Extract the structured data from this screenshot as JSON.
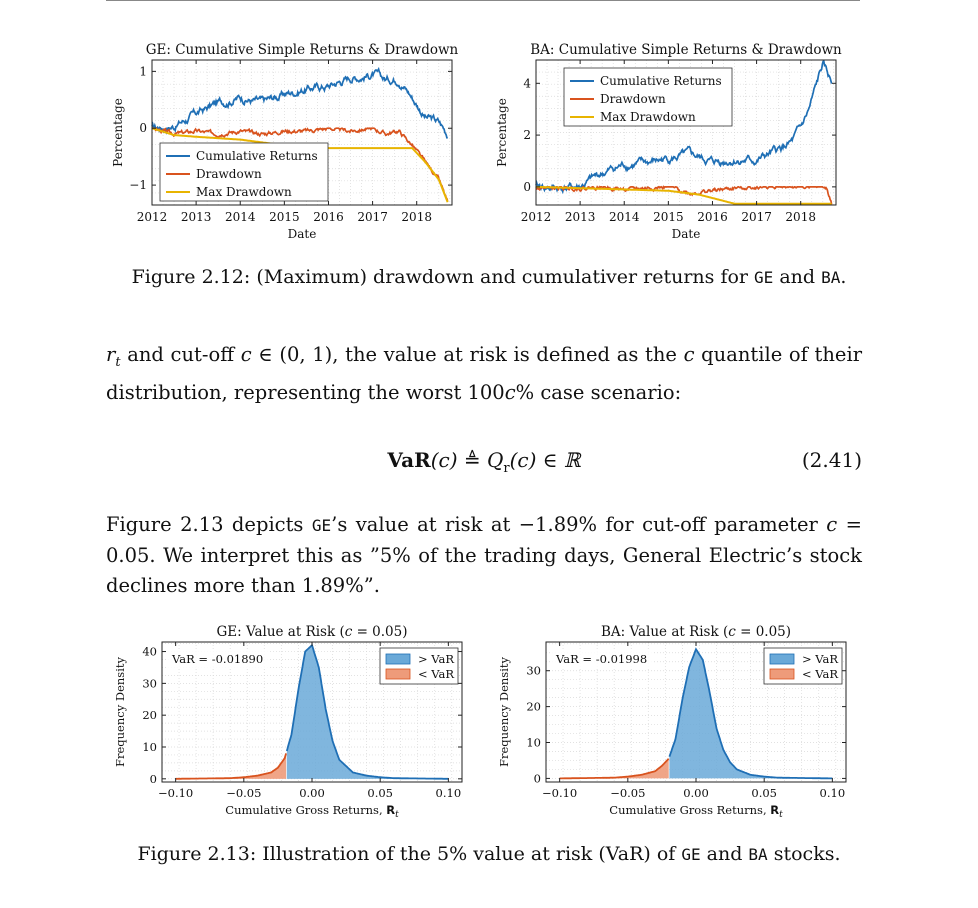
{
  "chart_data": [
    {
      "type": "line",
      "title": "GE: Cumulative Simple Returns & Drawdown",
      "xlabel": "Date",
      "ylabel": "Percentage",
      "xlim": [
        2012,
        2018.8
      ],
      "ylim": [
        -1.35,
        1.2
      ],
      "xticks": [
        "2012",
        "2013",
        "2014",
        "2015",
        "2016",
        "2017",
        "2018"
      ],
      "yticks": [
        {
          "v": 1,
          "label": "1"
        },
        {
          "v": 0,
          "label": "0"
        },
        {
          "v": -1,
          "label": "−1"
        }
      ],
      "legend": "bottom-left",
      "grid": true,
      "series": [
        {
          "name": "Cumulative Returns",
          "color": "#1f6fb5",
          "x": [
            2012,
            2012.5,
            2013,
            2013.5,
            2014,
            2014.5,
            2015,
            2015.5,
            2016,
            2016.5,
            2017,
            2017.3,
            2017.6,
            2017.9,
            2018.2,
            2018.5,
            2018.7
          ],
          "y": [
            0,
            0.05,
            0.25,
            0.45,
            0.55,
            0.45,
            0.6,
            0.7,
            0.75,
            0.9,
            0.95,
            0.85,
            0.9,
            0.55,
            0.2,
            0.1,
            -0.1
          ]
        },
        {
          "name": "Drawdown",
          "color": "#d9531e",
          "x": [
            2012,
            2012.5,
            2013,
            2013.5,
            2014,
            2014.5,
            2015,
            2015.5,
            2016,
            2016.5,
            2017,
            2017.3,
            2017.6,
            2017.9,
            2018.2,
            2018.5,
            2018.7
          ],
          "y": [
            0,
            -0.1,
            -0.05,
            -0.1,
            -0.05,
            -0.1,
            -0.05,
            -0.05,
            0,
            -0.05,
            0,
            -0.1,
            -0.05,
            -0.3,
            -0.6,
            -0.9,
            -1.3
          ]
        },
        {
          "name": "Max Drawdown",
          "color": "#e8b400",
          "x": [
            2012,
            2012.5,
            2013,
            2014,
            2015,
            2016,
            2017,
            2017.9,
            2018.2,
            2018.5,
            2018.7
          ],
          "y": [
            0,
            -0.12,
            -0.15,
            -0.2,
            -0.3,
            -0.35,
            -0.35,
            -0.35,
            -0.6,
            -0.9,
            -1.3
          ]
        }
      ]
    },
    {
      "type": "line",
      "title": "BA: Cumulative Simple Returns & Drawdown",
      "xlabel": "Date",
      "ylabel": "Percentage",
      "xlim": [
        2012,
        2018.8
      ],
      "ylim": [
        -0.7,
        4.9
      ],
      "xticks": [
        "2012",
        "2013",
        "2014",
        "2015",
        "2016",
        "2017",
        "2018"
      ],
      "yticks": [
        {
          "v": 4,
          "label": "4"
        },
        {
          "v": 2,
          "label": "2"
        },
        {
          "v": 0,
          "label": "0"
        }
      ],
      "legend": "top-left",
      "grid": true,
      "series": [
        {
          "name": "Cumulative Returns",
          "color": "#1f6fb5",
          "x": [
            2012,
            2012.5,
            2013,
            2013.5,
            2014,
            2014.5,
            2015,
            2015.5,
            2016,
            2016.5,
            2017,
            2017.5,
            2017.8,
            2018,
            2018.2,
            2018.5,
            2018.7
          ],
          "y": [
            0,
            -0.05,
            0,
            0.5,
            0.85,
            0.9,
            1.1,
            1.2,
            0.95,
            1.05,
            1.0,
            1.4,
            1.7,
            2.2,
            3.0,
            4.7,
            4.0
          ]
        },
        {
          "name": "Drawdown",
          "color": "#d9531e",
          "x": [
            2012,
            2012.5,
            2013,
            2013.5,
            2014,
            2014.5,
            2015,
            2015.5,
            2016,
            2016.5,
            2017,
            2017.5,
            2018,
            2018.5,
            2018.6,
            2018.7
          ],
          "y": [
            0,
            -0.05,
            -0.05,
            0,
            -0.1,
            -0.05,
            0,
            -0.25,
            -0.15,
            -0.05,
            0,
            0,
            0,
            0,
            -0.1,
            -0.65
          ]
        },
        {
          "name": "Max Drawdown",
          "color": "#e8b400",
          "x": [
            2012,
            2013,
            2014,
            2015,
            2015.7,
            2016.5,
            2017,
            2018,
            2018.6,
            2018.7
          ],
          "y": [
            0,
            -0.05,
            -0.1,
            -0.15,
            -0.3,
            -0.65,
            -0.65,
            -0.65,
            -0.65,
            -0.65
          ]
        }
      ]
    },
    {
      "type": "area",
      "title": "GE: Value at Risk (c = 0.05)",
      "title_main": "GE: Value at Risk (",
      "title_c": "c",
      "title_rest": " = 0.05)",
      "xlabel": "Cumulative Gross Returns, ",
      "xlabel_symbol": "R",
      "xlabel_sub": "t",
      "ylabel": "Frequency Density",
      "xlim": [
        -0.11,
        0.11
      ],
      "ylim": [
        -1,
        43
      ],
      "xticks": [
        {
          "v": -0.1,
          "label": "−0.10"
        },
        {
          "v": -0.05,
          "label": "−0.05"
        },
        {
          "v": 0,
          "label": "0.00"
        },
        {
          "v": 0.05,
          "label": "0.05"
        },
        {
          "v": 0.1,
          "label": "0.10"
        }
      ],
      "yticks": [
        {
          "v": 0,
          "label": "0"
        },
        {
          "v": 10,
          "label": "10"
        },
        {
          "v": 20,
          "label": "20"
        },
        {
          "v": 30,
          "label": "30"
        },
        {
          "v": 40,
          "label": "40"
        }
      ],
      "var": -0.0189,
      "annotation": "VaR = -0.01890",
      "legend": "top-right",
      "grid": true,
      "series": [
        {
          "name": "> VaR",
          "color": "#6aa9d8"
        },
        {
          "name": "< VaR",
          "color": "#ee9b7a"
        }
      ],
      "x": [
        -0.1,
        -0.06,
        -0.05,
        -0.04,
        -0.03,
        -0.025,
        -0.02,
        -0.015,
        -0.01,
        -0.005,
        0,
        0.005,
        0.01,
        0.015,
        0.02,
        0.03,
        0.04,
        0.05,
        0.06,
        0.1
      ],
      "y": [
        0,
        0.2,
        0.5,
        1,
        2,
        3.5,
        6.5,
        14,
        28,
        40,
        42,
        35,
        22,
        12,
        6,
        2,
        1,
        0.5,
        0.2,
        0
      ]
    },
    {
      "type": "area",
      "title": "BA: Value at Risk (c = 0.05)",
      "title_main": "BA: Value at Risk (",
      "title_c": "c",
      "title_rest": " = 0.05)",
      "xlabel": "Cumulative Gross Returns, ",
      "xlabel_symbol": "R",
      "xlabel_sub": "t",
      "ylabel": "Frequency Density",
      "xlim": [
        -0.11,
        0.11
      ],
      "ylim": [
        -1,
        38
      ],
      "xticks": [
        {
          "v": -0.1,
          "label": "−0.10"
        },
        {
          "v": -0.05,
          "label": "−0.05"
        },
        {
          "v": 0,
          "label": "0.00"
        },
        {
          "v": 0.05,
          "label": "0.05"
        },
        {
          "v": 0.1,
          "label": "0.10"
        }
      ],
      "yticks": [
        {
          "v": 0,
          "label": "0"
        },
        {
          "v": 10,
          "label": "10"
        },
        {
          "v": 20,
          "label": "20"
        },
        {
          "v": 30,
          "label": "30"
        }
      ],
      "var": -0.01998,
      "annotation": "VaR = -0.01998",
      "legend": "top-right",
      "grid": true,
      "series": [
        {
          "name": "> VaR",
          "color": "#6aa9d8"
        },
        {
          "name": "< VaR",
          "color": "#ee9b7a"
        }
      ],
      "x": [
        -0.1,
        -0.06,
        -0.05,
        -0.04,
        -0.03,
        -0.025,
        -0.02,
        -0.015,
        -0.01,
        -0.005,
        0,
        0.005,
        0.01,
        0.015,
        0.02,
        0.025,
        0.03,
        0.04,
        0.05,
        0.06,
        0.1
      ],
      "y": [
        0,
        0.2,
        0.5,
        1,
        2,
        3.5,
        5.5,
        11,
        22,
        31,
        36,
        33,
        24,
        14,
        8,
        4.5,
        2.5,
        1,
        0.5,
        0.2,
        0
      ]
    }
  ],
  "fig212": {
    "label": "Figure 2.12: (Maximum) drawdown and cumulativer returns for ",
    "ge": "GE",
    "and": " and ",
    "ba": "BA",
    "end": "."
  },
  "para1": {
    "r": "r",
    "r_sub": "t",
    "text1": " and cut-off ",
    "c1": "c",
    "in": " ∈ (0, 1), the value at risk is defined as the ",
    "c2": "c",
    "text2": " quantile of their distribution, representing the worst 100",
    "c3": "c",
    "text3": "% case scenario:"
  },
  "equation": {
    "var": "VaR",
    "arg": "(c)",
    "mid": " ≜ ",
    "q": "Q",
    "q_sub": "r",
    "q_arg": "(c) ∈ ℝ",
    "number": "(2.41)"
  },
  "para2": {
    "text1": "Figure 2.13 depicts ",
    "ge": "GE",
    "text2": "’s value at risk at −1.89% for cut-off parameter ",
    "c": "c",
    "text3": " = 0.05.  We interpret this as ”5% of the trading days, General Electric’s stock declines more than 1.89%”."
  },
  "fig213": {
    "label": "Figure 2.13: Illustration of the 5% value at risk (VaR) of ",
    "ge": "GE",
    "and": " and ",
    "ba": "BA",
    "end": " stocks."
  }
}
